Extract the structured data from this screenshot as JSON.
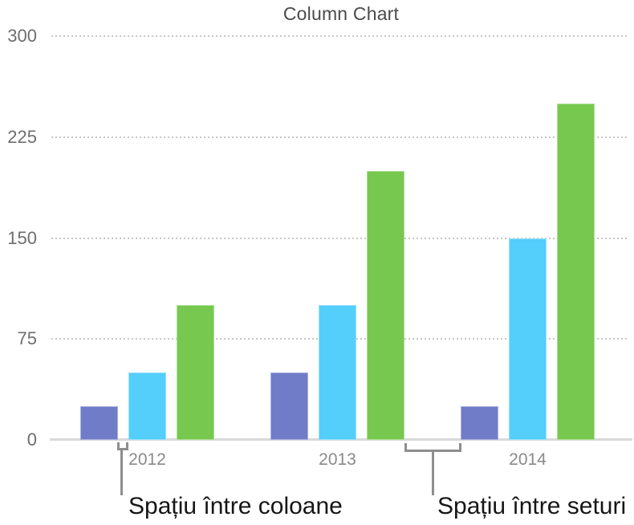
{
  "chart_data": {
    "type": "bar",
    "title": "Column Chart",
    "categories": [
      "2012",
      "2013",
      "2014"
    ],
    "series": [
      {
        "name": "purple",
        "color": "#717CC8",
        "values": [
          25,
          50,
          25
        ]
      },
      {
        "name": "blue",
        "color": "#54CEFB",
        "values": [
          50,
          100,
          150
        ]
      },
      {
        "name": "green",
        "color": "#77C84F",
        "values": [
          100,
          200,
          250
        ]
      }
    ],
    "ylim": [
      0,
      300
    ],
    "yticks": [
      0,
      75,
      150,
      225,
      300
    ],
    "xlabel": "",
    "ylabel": "",
    "grid": "horizontal-dotted",
    "legend": "none",
    "annotations": [
      {
        "label": "Spațiu între coloane",
        "target": "gap-between-columns"
      },
      {
        "label": "Spațiu între seturi",
        "target": "gap-between-sets"
      }
    ]
  },
  "colors": {
    "axis_line": "#d9d9d9",
    "gridline": "#c6c6c6",
    "bracket": "#8e8e8e",
    "title_text": "#4b4b4b",
    "tick_text": "#6e6e6e",
    "category_text": "#8a8a8a",
    "callout_text": "#161616"
  }
}
